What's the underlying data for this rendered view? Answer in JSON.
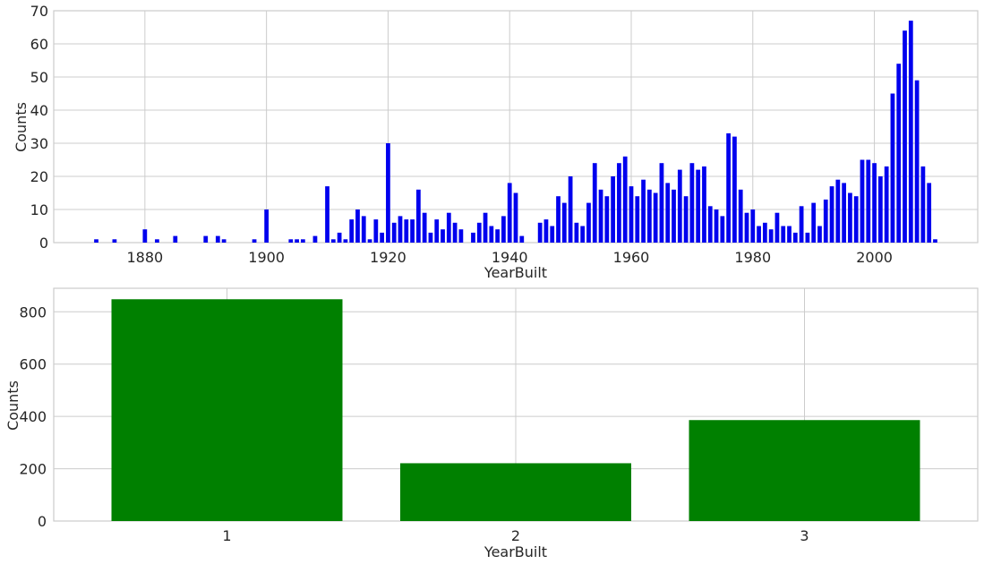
{
  "chart_data": [
    {
      "type": "bar",
      "xlabel": "YearBuilt",
      "ylabel": "Counts",
      "color": "#0000ee",
      "xlim": [
        1865,
        2017
      ],
      "ylim": [
        0,
        70
      ],
      "xticks": [
        1880,
        1900,
        1920,
        1940,
        1960,
        1980,
        2000
      ],
      "yticks": [
        0,
        10,
        20,
        30,
        40,
        50,
        60,
        70
      ],
      "grid": true,
      "x": [
        1872,
        1875,
        1880,
        1882,
        1885,
        1890,
        1892,
        1893,
        1898,
        1900,
        1904,
        1905,
        1906,
        1908,
        1910,
        1911,
        1912,
        1913,
        1914,
        1915,
        1916,
        1917,
        1918,
        1919,
        1920,
        1921,
        1922,
        1923,
        1924,
        1925,
        1926,
        1927,
        1928,
        1929,
        1930,
        1931,
        1932,
        1934,
        1935,
        1936,
        1937,
        1938,
        1939,
        1940,
        1941,
        1942,
        1945,
        1946,
        1947,
        1948,
        1949,
        1950,
        1951,
        1952,
        1953,
        1954,
        1955,
        1956,
        1957,
        1958,
        1959,
        1960,
        1961,
        1962,
        1963,
        1964,
        1965,
        1966,
        1967,
        1968,
        1969,
        1970,
        1971,
        1972,
        1973,
        1974,
        1975,
        1976,
        1977,
        1978,
        1979,
        1980,
        1981,
        1982,
        1983,
        1984,
        1985,
        1986,
        1987,
        1988,
        1989,
        1990,
        1991,
        1992,
        1993,
        1994,
        1995,
        1996,
        1997,
        1998,
        1999,
        2000,
        2001,
        2002,
        2003,
        2004,
        2005,
        2006,
        2007,
        2008,
        2009,
        2010
      ],
      "values": [
        1,
        1,
        4,
        1,
        2,
        2,
        2,
        1,
        1,
        10,
        1,
        1,
        1,
        2,
        17,
        1,
        3,
        1,
        7,
        10,
        8,
        1,
        7,
        3,
        30,
        6,
        8,
        7,
        7,
        16,
        9,
        3,
        7,
        4,
        9,
        6,
        4,
        3,
        6,
        9,
        5,
        4,
        8,
        18,
        15,
        2,
        6,
        7,
        5,
        14,
        12,
        20,
        6,
        5,
        12,
        24,
        16,
        14,
        20,
        24,
        26,
        17,
        14,
        19,
        16,
        15,
        24,
        18,
        16,
        22,
        14,
        24,
        22,
        23,
        11,
        10,
        8,
        33,
        32,
        16,
        9,
        10,
        5,
        6,
        4,
        9,
        5,
        5,
        3,
        11,
        3,
        12,
        5,
        13,
        17,
        19,
        18,
        15,
        14,
        25,
        25,
        24,
        20,
        23,
        45,
        54,
        64,
        67,
        49,
        23,
        18,
        1
      ]
    },
    {
      "type": "bar",
      "xlabel": "YearBuilt",
      "ylabel": "Counts",
      "color": "#008000",
      "categories": [
        "1",
        "2",
        "3"
      ],
      "values": [
        848,
        221,
        386
      ],
      "ylim": [
        0,
        890
      ],
      "yticks": [
        0,
        200,
        400,
        600,
        800
      ],
      "grid": true
    }
  ]
}
